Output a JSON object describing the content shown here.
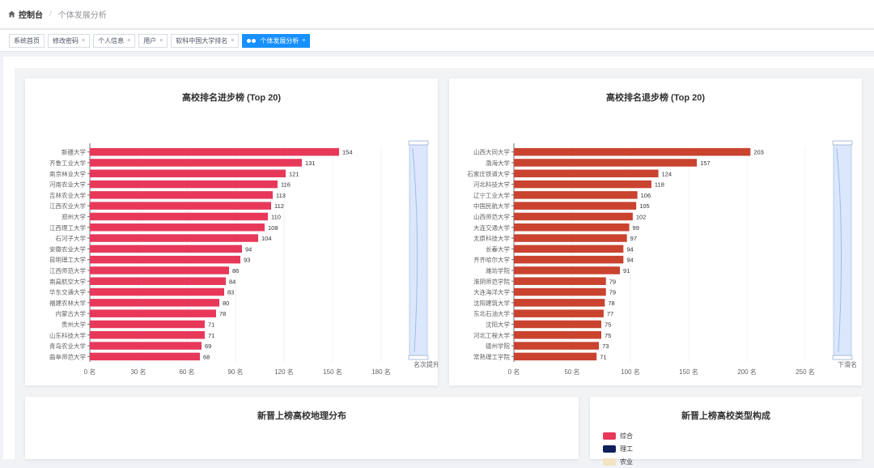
{
  "breadcrumb": {
    "home": "控制台",
    "current": "个体发展分析"
  },
  "tags": [
    {
      "label": "系统首页",
      "closable": false,
      "active": false
    },
    {
      "label": "修改密码",
      "closable": true,
      "active": false
    },
    {
      "label": "个人信息",
      "closable": true,
      "active": false
    },
    {
      "label": "用户",
      "closable": true,
      "active": false
    },
    {
      "label": "软科中国大学排名",
      "closable": true,
      "active": false
    },
    {
      "label": "个体发展分析",
      "closable": true,
      "active": true
    }
  ],
  "close_glyph": "×",
  "charts": {
    "progress": {
      "title": "高校排名进步榜 (Top 20)",
      "type": "bar",
      "color": "#e8385a",
      "categories": [
        "新疆大学",
        "齐鲁工业大学",
        "南京林业大学",
        "河南农业大学",
        "吉林农业大学",
        "江西农业大学",
        "郑州大学",
        "江西理工大学",
        "石河子大学",
        "安徽农业大学",
        "昆明理工大学",
        "江西师范大学",
        "南昌航空大学",
        "华东交通大学",
        "福建农林大学",
        "内蒙古大学",
        "贵州大学",
        "山东科技大学",
        "青岛农业大学",
        "曲阜师范大学"
      ],
      "values": [
        154,
        131,
        121,
        116,
        113,
        112,
        110,
        108,
        104,
        94,
        93,
        86,
        84,
        83,
        80,
        78,
        71,
        71,
        69,
        68
      ],
      "xlim": [
        0,
        180
      ],
      "xticks": [
        0,
        30,
        60,
        90,
        120,
        150,
        180
      ],
      "tick_suffix": " 名",
      "axis_name": "名次提升"
    },
    "regress": {
      "title": "高校排名退步榜 (Top 20)",
      "type": "bar",
      "color": "#c9432f",
      "categories": [
        "山西大同大学",
        "渤海大学",
        "石家庄铁道大学",
        "河北科技大学",
        "辽宁工业大学",
        "中国民航大学",
        "山西师范大学",
        "大连交通大学",
        "太原科技大学",
        "长春大学",
        "齐齐哈尔大学",
        "潍坊学院",
        "淮阴师范学院",
        "大连海洋大学",
        "沈阳建筑大学",
        "东北石油大学",
        "沈阳大学",
        "河北工程大学",
        "德州学院",
        "常熟理工学院"
      ],
      "values": [
        203,
        157,
        124,
        118,
        106,
        105,
        102,
        99,
        97,
        94,
        94,
        91,
        79,
        79,
        78,
        77,
        75,
        75,
        73,
        71
      ],
      "xlim": [
        0,
        250
      ],
      "xticks": [
        0,
        50,
        100,
        150,
        200,
        250
      ],
      "tick_suffix": " 名",
      "axis_name": "下滑名"
    }
  },
  "geo_card": {
    "title": "新晋上榜高校地理分布"
  },
  "type_card": {
    "title": "新晋上榜高校类型构成",
    "legend": [
      {
        "label": "综合",
        "color": "#e8385a"
      },
      {
        "label": "理工",
        "color": "#0f1f5c"
      },
      {
        "label": "农业",
        "color": "#f3e3c3"
      }
    ]
  },
  "colors": {
    "accent": "#1890ff"
  }
}
